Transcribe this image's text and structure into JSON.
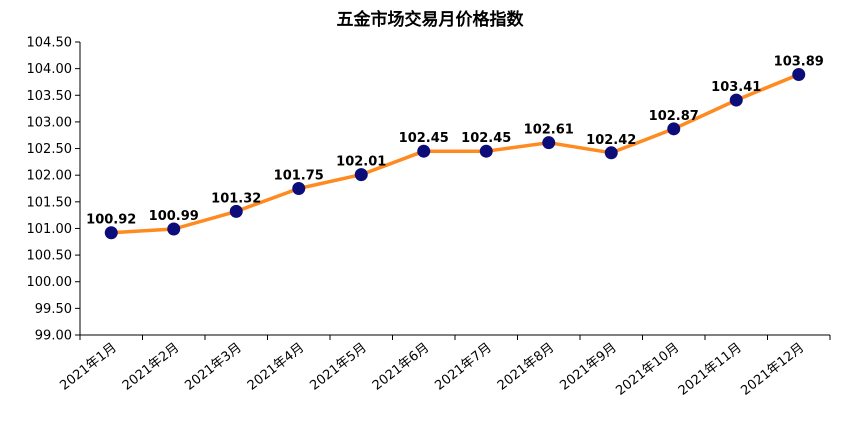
{
  "chart_data": {
    "type": "line",
    "title": "五金市场交易月价格指数",
    "xlabel": "",
    "ylabel": "",
    "categories": [
      "2021年1月",
      "2021年2月",
      "2021年3月",
      "2021年4月",
      "2021年5月",
      "2021年6月",
      "2021年7月",
      "2021年8月",
      "2021年9月",
      "2021年10月",
      "2021年11月",
      "2021年12月"
    ],
    "series": [
      {
        "values": [
          100.92,
          100.99,
          101.32,
          101.75,
          102.01,
          102.45,
          102.45,
          102.61,
          102.42,
          102.87,
          103.41,
          103.89
        ]
      }
    ],
    "data_labels": [
      "100.92",
      "100.99",
      "101.32",
      "101.75",
      "102.01",
      "102.45",
      "102.45",
      "102.61",
      "102.42",
      "102.87",
      "103.41",
      "103.89"
    ],
    "ylim": [
      99.0,
      104.5
    ],
    "yticks": [
      "99.00",
      "99.50",
      "100.00",
      "100.50",
      "101.00",
      "101.50",
      "102.00",
      "102.50",
      "103.00",
      "103.50",
      "104.00",
      "104.50"
    ],
    "grid": false,
    "legend": "none",
    "colors": {
      "line": "#ff8a1f",
      "marker": "#0d0d7a",
      "axis": "#000000"
    }
  }
}
